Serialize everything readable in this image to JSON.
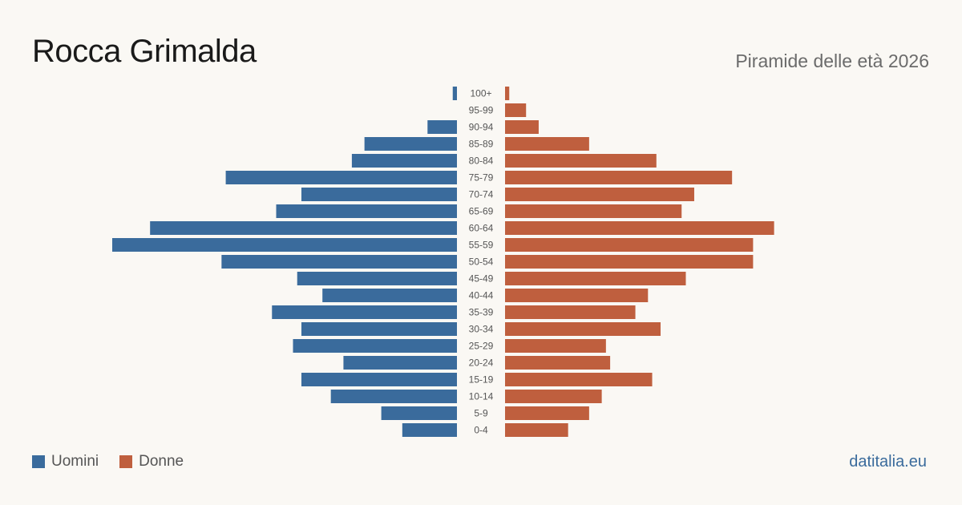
{
  "header": {
    "title": "Rocca Grimalda",
    "subtitle": "Piramide delle età 2026"
  },
  "legend": {
    "men_label": "Uomini",
    "women_label": "Donne"
  },
  "brand": "datitalia.eu",
  "colors": {
    "men": "#3a6b9c",
    "women": "#bf5f3e",
    "background": "#faf8f4",
    "label": "#555555"
  },
  "chart_data": {
    "type": "bar",
    "orientation": "horizontal-pyramid",
    "categories": [
      "100+",
      "95-99",
      "90-94",
      "85-89",
      "80-84",
      "75-79",
      "70-74",
      "65-69",
      "60-64",
      "55-59",
      "50-54",
      "45-49",
      "40-44",
      "35-39",
      "30-34",
      "25-29",
      "20-24",
      "15-19",
      "10-14",
      "5-9",
      "0-4"
    ],
    "series": [
      {
        "name": "Uomini",
        "values": [
          1,
          0,
          7,
          22,
          25,
          55,
          37,
          43,
          73,
          82,
          56,
          38,
          32,
          44,
          37,
          39,
          27,
          37,
          30,
          18,
          13
        ]
      },
      {
        "name": "Donne",
        "values": [
          1,
          5,
          8,
          20,
          36,
          54,
          45,
          42,
          64,
          59,
          59,
          43,
          34,
          31,
          37,
          24,
          25,
          35,
          23,
          20,
          15
        ]
      }
    ],
    "xlim": [
      0,
      82
    ],
    "grid": false,
    "legend_position": "bottom-left"
  }
}
